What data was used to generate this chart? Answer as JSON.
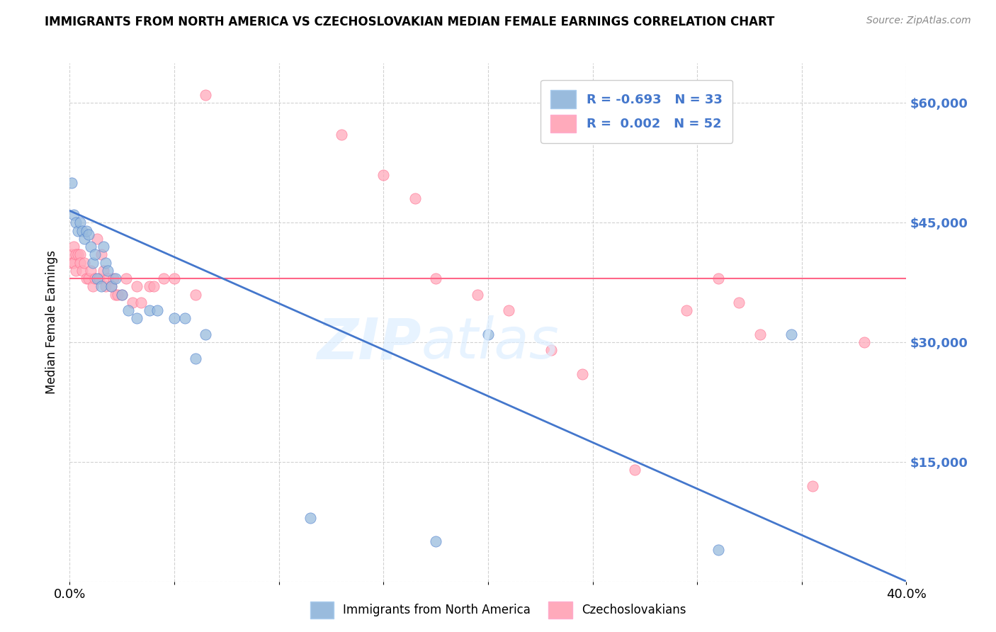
{
  "title": "IMMIGRANTS FROM NORTH AMERICA VS CZECHOSLOVAKIAN MEDIAN FEMALE EARNINGS CORRELATION CHART",
  "source": "Source: ZipAtlas.com",
  "ylabel": "Median Female Earnings",
  "yticks": [
    0,
    15000,
    30000,
    45000,
    60000
  ],
  "ytick_labels": [
    "",
    "$15,000",
    "$30,000",
    "$45,000",
    "$60,000"
  ],
  "legend_r1": "R = -0.693",
  "legend_n1": "N = 33",
  "legend_r2": "R =  0.002",
  "legend_n2": "N = 52",
  "color_blue": "#99BBDD",
  "color_pink": "#FFAABB",
  "color_blue_line": "#4477CC",
  "color_pink_line": "#FF6688",
  "watermark_zip": "ZIP",
  "watermark_atlas": "atlas",
  "blue_scatter_x": [
    0.001,
    0.002,
    0.003,
    0.004,
    0.005,
    0.006,
    0.007,
    0.008,
    0.009,
    0.01,
    0.011,
    0.012,
    0.013,
    0.015,
    0.016,
    0.017,
    0.018,
    0.02,
    0.022,
    0.025,
    0.028,
    0.032,
    0.038,
    0.042,
    0.05,
    0.055,
    0.06,
    0.065,
    0.115,
    0.175,
    0.2,
    0.31,
    0.345
  ],
  "blue_scatter_y": [
    50000,
    46000,
    45000,
    44000,
    45000,
    44000,
    43000,
    44000,
    43500,
    42000,
    40000,
    41000,
    38000,
    37000,
    42000,
    40000,
    39000,
    37000,
    38000,
    36000,
    34000,
    33000,
    34000,
    34000,
    33000,
    33000,
    28000,
    31000,
    8000,
    5000,
    31000,
    4000,
    31000
  ],
  "pink_scatter_x": [
    0.001,
    0.001,
    0.002,
    0.002,
    0.003,
    0.003,
    0.004,
    0.005,
    0.005,
    0.006,
    0.007,
    0.008,
    0.009,
    0.01,
    0.011,
    0.012,
    0.013,
    0.014,
    0.015,
    0.016,
    0.017,
    0.018,
    0.02,
    0.021,
    0.022,
    0.023,
    0.025,
    0.027,
    0.03,
    0.032,
    0.034,
    0.038,
    0.04,
    0.045,
    0.05,
    0.06,
    0.065,
    0.13,
    0.15,
    0.165,
    0.175,
    0.195,
    0.21,
    0.23,
    0.245,
    0.27,
    0.295,
    0.31,
    0.32,
    0.33,
    0.355,
    0.38
  ],
  "pink_scatter_y": [
    41000,
    40000,
    42000,
    40000,
    41000,
    39000,
    41000,
    41000,
    40000,
    39000,
    40000,
    38000,
    38000,
    39000,
    37000,
    38000,
    43000,
    38000,
    41000,
    39000,
    37000,
    38000,
    37000,
    38000,
    36000,
    36000,
    36000,
    38000,
    35000,
    37000,
    35000,
    37000,
    37000,
    38000,
    38000,
    36000,
    61000,
    56000,
    51000,
    48000,
    38000,
    36000,
    34000,
    29000,
    26000,
    14000,
    34000,
    38000,
    35000,
    31000,
    12000,
    30000
  ],
  "blue_line_x": [
    0.0,
    0.4
  ],
  "blue_line_y": [
    46500,
    0
  ],
  "pink_line_x": [
    0.0,
    0.4
  ],
  "pink_line_y": [
    38000,
    38000
  ],
  "xmin": 0.0,
  "xmax": 0.4,
  "ymin": 0,
  "ymax": 65000,
  "xtick_left_label": "0.0%",
  "xtick_right_label": "40.0%"
}
